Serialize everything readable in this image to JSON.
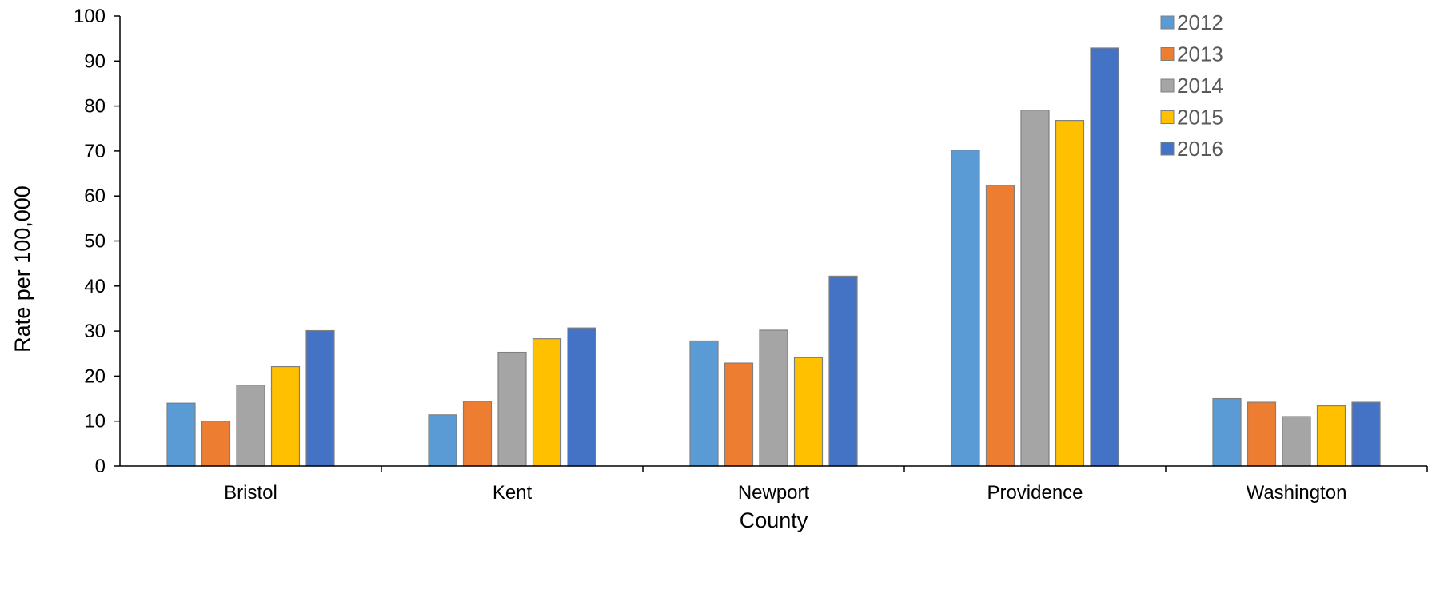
{
  "chart_data": {
    "type": "bar",
    "title": "",
    "xlabel": "County",
    "ylabel": "Rate per 100,000",
    "ylim": [
      0,
      100
    ],
    "yticks": [
      0,
      10,
      20,
      30,
      40,
      50,
      60,
      70,
      80,
      90,
      100
    ],
    "grid": false,
    "legend_position": "top-right",
    "categories": [
      "Bristol",
      "Kent",
      "Newport",
      "Providence",
      "Washington"
    ],
    "series": [
      {
        "name": "2012",
        "color": "#5B9BD5",
        "values": [
          14.0,
          11.4,
          27.8,
          70.2,
          15.0
        ]
      },
      {
        "name": "2013",
        "color": "#ED7D31",
        "values": [
          10.0,
          14.4,
          22.9,
          62.4,
          14.2
        ]
      },
      {
        "name": "2014",
        "color": "#A5A5A5",
        "values": [
          18.0,
          25.3,
          30.2,
          79.1,
          11.0
        ]
      },
      {
        "name": "2015",
        "color": "#FFC000",
        "values": [
          22.1,
          28.3,
          24.1,
          76.8,
          13.4
        ]
      },
      {
        "name": "2016",
        "color": "#4472C4",
        "values": [
          30.1,
          30.7,
          42.2,
          92.9,
          14.2
        ]
      }
    ]
  }
}
